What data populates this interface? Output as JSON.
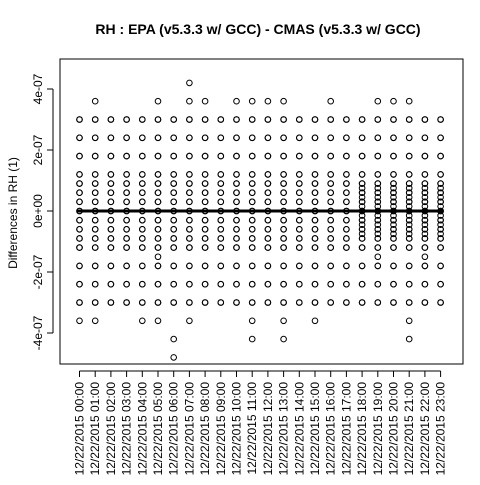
{
  "chart_data": {
    "type": "scatter",
    "title": "RH : EPA (v5.3.3 w/ GCC) - CMAS (v5.3.3 w/ GCC)",
    "xlabel": "",
    "ylabel": "Differences in RH (1)",
    "y_ticks": [
      {
        "value": -4e-07,
        "label": "-4e-07"
      },
      {
        "value": -2e-07,
        "label": "-2e-07"
      },
      {
        "value": 0,
        "label": "0e+00"
      },
      {
        "value": 2e-07,
        "label": "2e-07"
      },
      {
        "value": 4e-07,
        "label": "4e-07"
      }
    ],
    "ylim": [
      -5e-07,
      5e-07
    ],
    "grid": false,
    "legend": "none",
    "categories": [
      "12/22/2015 00:00",
      "12/22/2015 01:00",
      "12/22/2015 02:00",
      "12/22/2015 03:00",
      "12/22/2015 04:00",
      "12/22/2015 05:00",
      "12/22/2015 06:00",
      "12/22/2015 07:00",
      "12/22/2015 08:00",
      "12/22/2015 09:00",
      "12/22/2015 10:00",
      "12/22/2015 11:00",
      "12/22/2015 12:00",
      "12/22/2015 13:00",
      "12/22/2015 14:00",
      "12/22/2015 15:00",
      "12/22/2015 16:00",
      "12/22/2015 17:00",
      "12/22/2015 18:00",
      "12/22/2015 19:00",
      "12/22/2015 20:00",
      "12/22/2015 21:00",
      "12/22/2015 22:00",
      "12/22/2015 23:00"
    ],
    "base_levels": [
      -3e-07,
      -2.4e-07,
      -1.8e-07,
      -1.2e-07,
      -9e-08,
      -6e-08,
      -3e-08,
      0,
      3e-08,
      6e-08,
      9e-08,
      1.2e-07,
      1.8e-07,
      2.4e-07,
      3e-07
    ],
    "extra_points": [
      [
        0,
        -3.6e-07
      ],
      [
        1,
        3.6e-07
      ],
      [
        1,
        -3.6e-07
      ],
      [
        4,
        -3.6e-07
      ],
      [
        5,
        3.6e-07
      ],
      [
        5,
        -3.6e-07
      ],
      [
        5,
        -1.5e-07
      ],
      [
        6,
        -4.2e-07
      ],
      [
        6,
        -4.8e-07
      ],
      [
        7,
        4.2e-07
      ],
      [
        7,
        3.6e-07
      ],
      [
        7,
        -3.6e-07
      ],
      [
        8,
        3.6e-07
      ],
      [
        10,
        3.6e-07
      ],
      [
        11,
        3.6e-07
      ],
      [
        11,
        -3.6e-07
      ],
      [
        11,
        -4.2e-07
      ],
      [
        12,
        3.6e-07
      ],
      [
        13,
        3.6e-07
      ],
      [
        13,
        -3.6e-07
      ],
      [
        13,
        -4.2e-07
      ],
      [
        15,
        -3.6e-07
      ],
      [
        16,
        3.6e-07
      ],
      [
        19,
        3.6e-07
      ],
      [
        19,
        -1.5e-07
      ],
      [
        20,
        3.6e-07
      ],
      [
        21,
        3.6e-07
      ],
      [
        21,
        -3.6e-07
      ],
      [
        21,
        -4.2e-07
      ],
      [
        22,
        -1.5e-07
      ]
    ],
    "dense_columns": [
      18,
      19,
      20,
      21,
      22,
      23
    ],
    "dense_offsets": [
      1.5e-08,
      -1.5e-08,
      4.5e-08,
      -4.5e-08,
      7.5e-08,
      -7.5e-08
    ]
  }
}
